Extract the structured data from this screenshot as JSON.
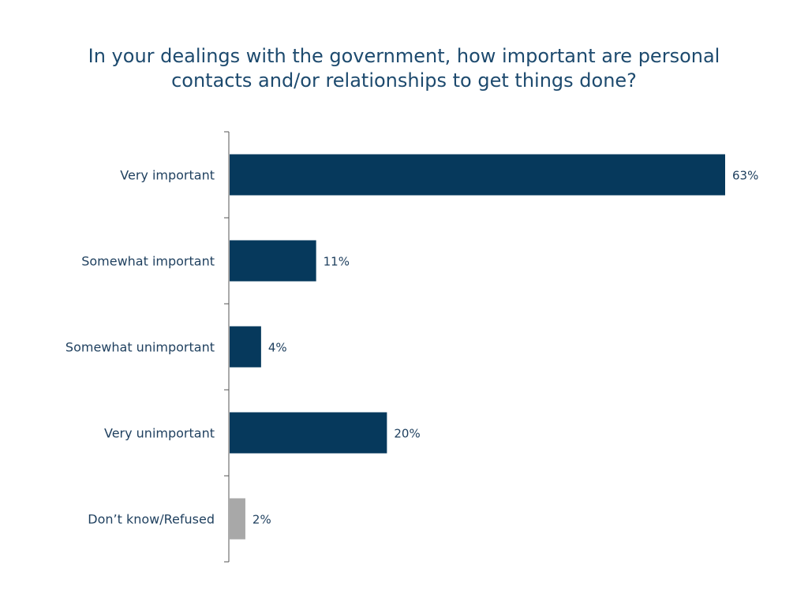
{
  "chart_data": {
    "type": "bar",
    "orientation": "horizontal",
    "title_lines": [
      "In your dealings with the government, how important are personal",
      "contacts and/or relationships to get things done?"
    ],
    "categories": [
      "Very important",
      "Somewhat important",
      "Somewhat unimportant",
      "Very unimportant",
      "Don’t know/Refused"
    ],
    "values": [
      63,
      11,
      4,
      20,
      2
    ],
    "value_labels": [
      "63%",
      "11%",
      "4%",
      "20%",
      "2%"
    ],
    "value_unit": "%",
    "xlim": [
      0,
      63
    ],
    "grid": false,
    "legend": "none",
    "colors": {
      "primary": "#06395c",
      "muted": "#a8a8a8",
      "axis": "#555555",
      "label": "#1e3f5e"
    },
    "bar_colors": [
      "primary",
      "primary",
      "primary",
      "primary",
      "muted"
    ]
  }
}
